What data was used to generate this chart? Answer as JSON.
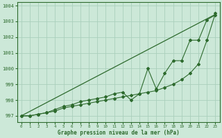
{
  "x": [
    0,
    1,
    2,
    3,
    4,
    5,
    6,
    7,
    8,
    9,
    10,
    11,
    12,
    13,
    14,
    15,
    16,
    17,
    18,
    19,
    20,
    21,
    22,
    23
  ],
  "y_smooth": [
    997.0,
    997.0,
    997.1,
    997.2,
    997.3,
    997.5,
    997.6,
    997.7,
    997.8,
    997.9,
    998.0,
    998.1,
    998.2,
    998.3,
    998.4,
    998.5,
    998.6,
    998.8,
    999.0,
    999.3,
    999.7,
    1000.3,
    1001.8,
    1003.5
  ],
  "y_noisy": [
    997.0,
    997.0,
    997.1,
    997.2,
    997.4,
    997.6,
    997.7,
    997.9,
    998.0,
    998.1,
    998.2,
    998.4,
    998.5,
    998.0,
    998.4,
    1000.0,
    998.7,
    999.7,
    1000.5,
    1000.5,
    1001.8,
    1001.8,
    1003.1,
    1003.4
  ],
  "y_trend": [
    997.0,
    997.28,
    997.56,
    997.84,
    998.12,
    998.4,
    998.68,
    998.96,
    999.24,
    999.52,
    999.8,
    1000.08,
    1000.36,
    1000.64,
    1000.92,
    1001.2,
    1001.48,
    1001.76,
    1002.04,
    1002.32,
    1002.6,
    1002.88,
    1003.16,
    1003.44
  ],
  "line_color": "#2d6a2d",
  "bg_color": "#cce8d8",
  "grid_color": "#aacfbc",
  "xlabel": "Graphe pression niveau de la mer (hPa)",
  "ylim": [
    996.6,
    1004.2
  ],
  "xlim": [
    -0.5,
    23.5
  ],
  "yticks": [
    997,
    998,
    999,
    1000,
    1001,
    1002,
    1003,
    1004
  ],
  "xticks": [
    0,
    1,
    2,
    3,
    4,
    5,
    6,
    7,
    8,
    9,
    10,
    11,
    12,
    13,
    14,
    15,
    16,
    17,
    18,
    19,
    20,
    21,
    22,
    23
  ]
}
